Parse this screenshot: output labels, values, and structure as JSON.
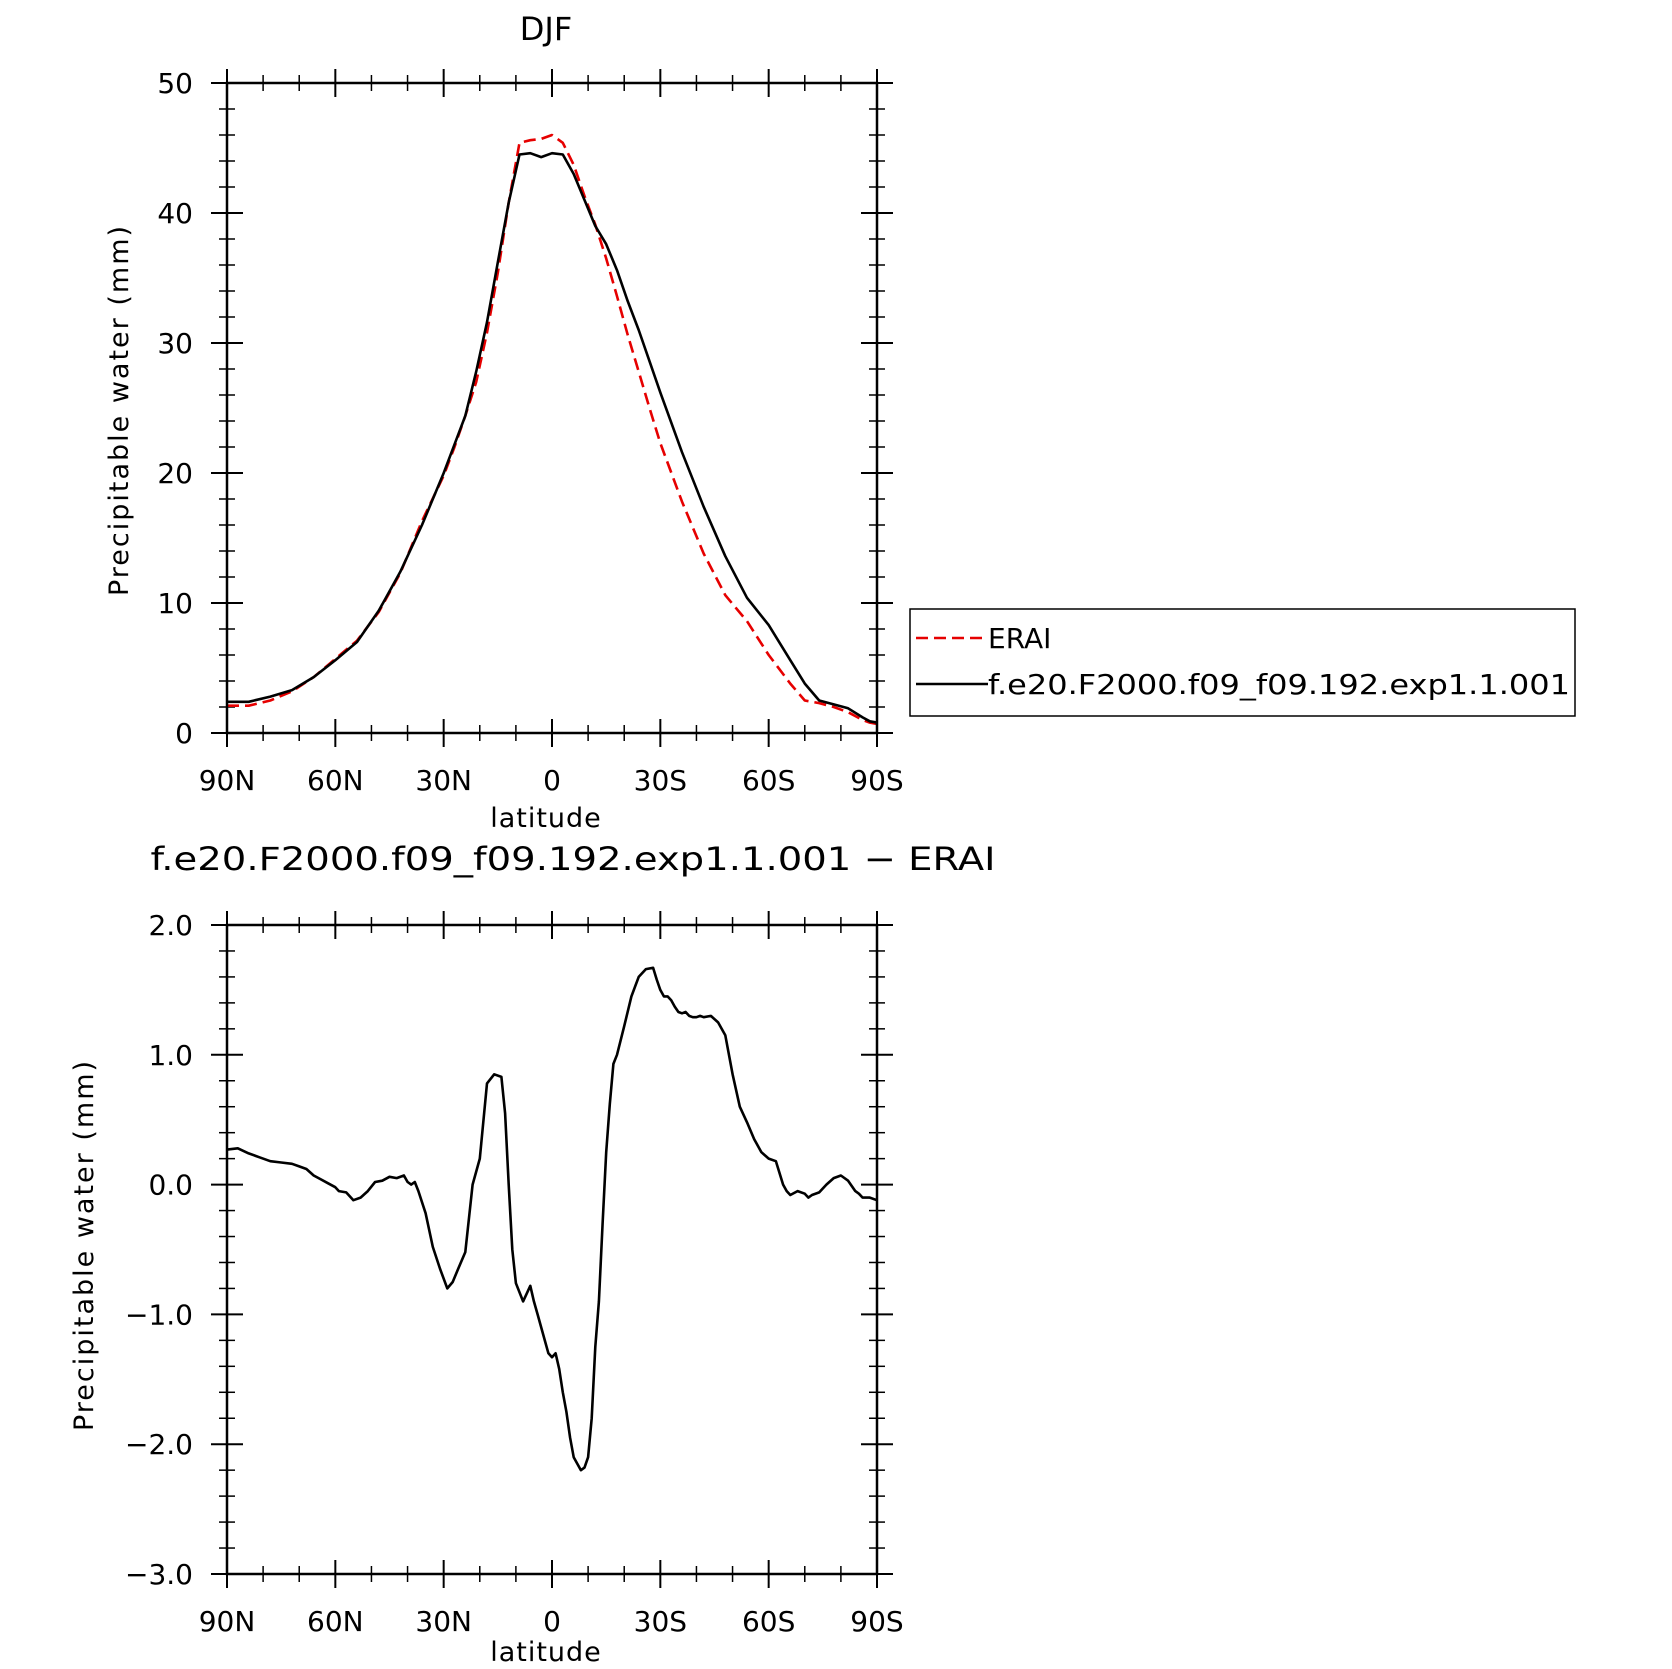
{
  "chart_data": [
    {
      "type": "line",
      "title": "DJF",
      "xlabel": "latitude",
      "ylabel": "Precipitable water (mm)",
      "xlim": [
        90,
        -90
      ],
      "ylim": [
        0,
        50
      ],
      "x_ticks": [
        {
          "value": 90,
          "label": "90N"
        },
        {
          "value": 60,
          "label": "60N"
        },
        {
          "value": 30,
          "label": "30N"
        },
        {
          "value": 0,
          "label": "0"
        },
        {
          "value": -30,
          "label": "30S"
        },
        {
          "value": -60,
          "label": "60S"
        },
        {
          "value": -90,
          "label": "90S"
        }
      ],
      "y_ticks": [
        {
          "value": 0,
          "label": "0"
        },
        {
          "value": 10,
          "label": "10"
        },
        {
          "value": 20,
          "label": "20"
        },
        {
          "value": 30,
          "label": "30"
        },
        {
          "value": 40,
          "label": "40"
        },
        {
          "value": 50,
          "label": "50"
        }
      ],
      "legend": "right",
      "series": [
        {
          "name": "ERAI",
          "color": "#e60000",
          "style": "dashed",
          "x": [
            90,
            84,
            78,
            72,
            66,
            60,
            54,
            48,
            42,
            36,
            30,
            27,
            24,
            21,
            18,
            15,
            12,
            9,
            6,
            3,
            0,
            -3,
            -6,
            -9,
            -12,
            -15,
            -18,
            -21,
            -24,
            -27,
            -30,
            -36,
            -42,
            -48,
            -54,
            -60,
            -66,
            -70,
            -74,
            -78,
            -82,
            -86,
            -88,
            -90
          ],
          "y": [
            2.1,
            2.1,
            2.5,
            3.2,
            4.3,
            5.7,
            7.1,
            9.3,
            12.3,
            16.3,
            19.8,
            22.0,
            24.4,
            27.0,
            30.8,
            35.4,
            40.8,
            45.4,
            45.6,
            45.7,
            46.0,
            45.4,
            43.7,
            41.3,
            39.1,
            36.5,
            33.6,
            30.6,
            27.8,
            25.0,
            22.3,
            17.8,
            13.8,
            10.6,
            8.6,
            6.0,
            3.8,
            2.5,
            2.3,
            2.0,
            1.6,
            1.0,
            0.8,
            0.7
          ]
        },
        {
          "name": "f.e20.F2000.f09_f09.192.exp1.1.001",
          "color": "#000000",
          "style": "solid",
          "x": [
            90,
            84,
            78,
            72,
            66,
            60,
            54,
            48,
            42,
            36,
            30,
            27,
            24,
            21,
            18,
            15,
            12,
            9,
            6,
            3,
            0,
            -3,
            -6,
            -9,
            -12,
            -15,
            -18,
            -21,
            -24,
            -27,
            -30,
            -36,
            -42,
            -48,
            -54,
            -60,
            -66,
            -70,
            -74,
            -78,
            -82,
            -86,
            -88,
            -90
          ],
          "y": [
            2.4,
            2.4,
            2.8,
            3.3,
            4.3,
            5.6,
            7.0,
            9.4,
            12.4,
            16.0,
            20.0,
            22.2,
            24.4,
            27.8,
            31.6,
            36.2,
            40.8,
            44.5,
            44.6,
            44.3,
            44.6,
            44.5,
            43.0,
            41.0,
            39.0,
            37.6,
            35.6,
            33.2,
            31.0,
            28.6,
            26.2,
            21.6,
            17.4,
            13.6,
            10.4,
            8.3,
            5.6,
            3.8,
            2.5,
            2.2,
            1.9,
            1.2,
            0.9,
            0.8
          ]
        }
      ]
    },
    {
      "type": "line",
      "title": "f.e20.F2000.f09_f09.192.exp1.1.001 − ERAI",
      "xlabel": "latitude",
      "ylabel": "Precipitable water (mm)",
      "xlim": [
        90,
        -90
      ],
      "ylim": [
        -3.0,
        2.0
      ],
      "x_ticks": [
        {
          "value": 90,
          "label": "90N"
        },
        {
          "value": 60,
          "label": "60N"
        },
        {
          "value": 30,
          "label": "30N"
        },
        {
          "value": 0,
          "label": "0"
        },
        {
          "value": -30,
          "label": "30S"
        },
        {
          "value": -60,
          "label": "60S"
        },
        {
          "value": -90,
          "label": "90S"
        }
      ],
      "y_ticks": [
        {
          "value": -3.0,
          "label": "−3.0"
        },
        {
          "value": -2.0,
          "label": "−2.0"
        },
        {
          "value": -1.0,
          "label": "−1.0"
        },
        {
          "value": 0.0,
          "label": "0.0"
        },
        {
          "value": 1.0,
          "label": "1.0"
        },
        {
          "value": 2.0,
          "label": "2.0"
        }
      ],
      "series": [
        {
          "color": "#000000",
          "style": "solid",
          "x": [
            90,
            87,
            84,
            81,
            78,
            75,
            72,
            70,
            68,
            66,
            64,
            62,
            60,
            59,
            57,
            55,
            53,
            51,
            49,
            47,
            45,
            43,
            41,
            40,
            39,
            38,
            37,
            35,
            33,
            31,
            29,
            27.5,
            26,
            24,
            22,
            20,
            18,
            16,
            14,
            13,
            12,
            11,
            10,
            8,
            6,
            5,
            4,
            3,
            2,
            1,
            0,
            -1,
            -2,
            -3,
            -4,
            -5,
            -6,
            -7,
            -8,
            -9,
            -10,
            -11,
            -12,
            -13,
            -14,
            -15,
            -16,
            -17,
            -18,
            -20,
            -22,
            -24,
            -26,
            -28,
            -29,
            -30,
            -31,
            -32,
            -33,
            -34,
            -35,
            -36,
            -37,
            -38,
            -39,
            -40,
            -41,
            -42,
            -44,
            -46,
            -48,
            -50,
            -52,
            -54,
            -56,
            -58,
            -60,
            -62,
            -64,
            -65,
            -66,
            -68,
            -70,
            -71,
            -72,
            -74,
            -76,
            -78,
            -80,
            -82,
            -84,
            -85,
            -86,
            -88,
            -90
          ],
          "y": [
            0.27,
            0.28,
            0.24,
            0.21,
            0.18,
            0.17,
            0.16,
            0.14,
            0.12,
            0.07,
            0.04,
            0.01,
            -0.02,
            -0.05,
            -0.06,
            -0.12,
            -0.1,
            -0.05,
            0.02,
            0.03,
            0.06,
            0.05,
            0.07,
            0.02,
            0.0,
            0.02,
            -0.05,
            -0.22,
            -0.48,
            -0.65,
            -0.8,
            -0.75,
            -0.65,
            -0.52,
            0.0,
            0.2,
            0.78,
            0.85,
            0.83,
            0.55,
            0.0,
            -0.5,
            -0.76,
            -0.9,
            -0.78,
            -0.9,
            -1.0,
            -1.1,
            -1.2,
            -1.3,
            -1.33,
            -1.3,
            -1.42,
            -1.6,
            -1.75,
            -1.95,
            -2.1,
            -2.15,
            -2.2,
            -2.18,
            -2.1,
            -1.8,
            -1.25,
            -0.9,
            -0.3,
            0.25,
            0.62,
            0.93,
            1.0,
            1.22,
            1.45,
            1.6,
            1.66,
            1.67,
            1.58,
            1.5,
            1.45,
            1.45,
            1.42,
            1.37,
            1.33,
            1.32,
            1.33,
            1.3,
            1.29,
            1.29,
            1.3,
            1.29,
            1.3,
            1.25,
            1.15,
            0.85,
            0.6,
            0.48,
            0.35,
            0.25,
            0.2,
            0.18,
            0.0,
            -0.05,
            -0.08,
            -0.05,
            -0.07,
            -0.1,
            -0.08,
            -0.06,
            0.0,
            0.05,
            0.07,
            0.03,
            -0.05,
            -0.07,
            -0.1,
            -0.1,
            -0.12
          ]
        }
      ]
    }
  ]
}
